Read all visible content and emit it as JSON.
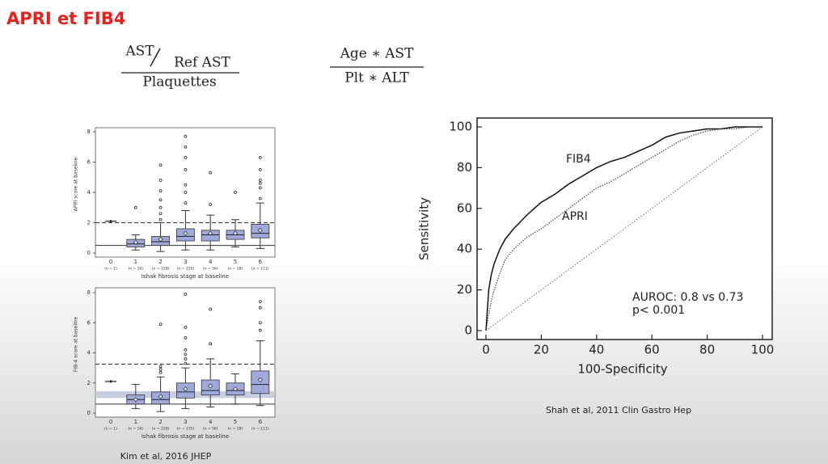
{
  "title": "APRI et FIB4",
  "formulas": [
    {
      "numerator": "AST",
      "divisor": "Ref AST",
      "denominator": "Plaquettes"
    },
    {
      "numerator": "Age ∗ AST",
      "denominator": "Plt ∗ ALT"
    }
  ],
  "chart_data": [
    {
      "type": "box",
      "y_label": "APRI score at baseline",
      "x_label": "Ishak fibrosis stage at baseline",
      "categories": [
        "0",
        "1",
        "2",
        "3",
        "4",
        "5",
        "6"
      ],
      "n_labels": [
        "(n = 1)",
        "(n = 16)",
        "(n = 228)",
        "(n = 135)",
        "(n = 56)",
        "(n = 28)",
        "(n = 111)"
      ],
      "ylim": [
        0,
        8
      ],
      "yticks": [
        0,
        2,
        4,
        6,
        8
      ],
      "color": "#9fa9dc",
      "reference_lines": [
        {
          "value": 2,
          "style": "dashed"
        },
        {
          "value": 0.5,
          "style": "solid"
        }
      ],
      "boxes": [
        {
          "mean": 2.1
        },
        {
          "low": 0.2,
          "q1": 0.4,
          "median": 0.6,
          "q3": 0.9,
          "high": 1.2,
          "mean": 0.7,
          "outliers": [
            3.0
          ]
        },
        {
          "low": 0.1,
          "q1": 0.5,
          "median": 0.75,
          "q3": 1.1,
          "high": 2.0,
          "mean": 0.9,
          "outliers": [
            2.2,
            2.6,
            3.0,
            3.5,
            4.1,
            4.8,
            5.8
          ]
        },
        {
          "low": 0.2,
          "q1": 0.8,
          "median": 1.1,
          "q3": 1.6,
          "high": 2.8,
          "mean": 1.3,
          "outliers": [
            3.3,
            4.0,
            4.5,
            5.5,
            6.3,
            7.0,
            7.7
          ]
        },
        {
          "low": 0.2,
          "q1": 0.8,
          "median": 1.2,
          "q3": 1.5,
          "high": 2.5,
          "mean": 1.3,
          "outliers": [
            3.2,
            5.3
          ]
        },
        {
          "low": 0.4,
          "q1": 0.9,
          "median": 1.2,
          "q3": 1.5,
          "high": 2.2,
          "mean": 1.3,
          "outliers": [
            4.0
          ]
        },
        {
          "low": 0.3,
          "q1": 1.0,
          "median": 1.3,
          "q3": 1.9,
          "high": 3.3,
          "mean": 1.5,
          "outliers": [
            3.6,
            4.3,
            4.6,
            4.8,
            5.5,
            6.3
          ]
        }
      ]
    },
    {
      "type": "box",
      "y_label": "FIB-4 score at baseline",
      "x_label": "Ishak fibrosis stage at baseline",
      "categories": [
        "0",
        "1",
        "2",
        "3",
        "4",
        "5",
        "6"
      ],
      "n_labels": [
        "(n = 1)",
        "(n = 16)",
        "(n = 228)",
        "(n = 135)",
        "(n = 56)",
        "(n = 28)",
        "(n = 111)"
      ],
      "ylim": [
        0,
        8
      ],
      "yticks": [
        0,
        2,
        4,
        6,
        8
      ],
      "color": "#9fa9dc",
      "reference_lines": [
        {
          "value": 3.25,
          "style": "dashed"
        },
        {
          "value": 0.6,
          "style": "solid"
        }
      ],
      "shaded_band": [
        1.0,
        1.45
      ],
      "boxes": [
        {
          "mean": 2.1
        },
        {
          "low": 0.3,
          "q1": 0.6,
          "median": 0.9,
          "q3": 1.2,
          "high": 1.9,
          "mean": 0.9
        },
        {
          "low": 0.1,
          "q1": 0.6,
          "median": 0.9,
          "q3": 1.4,
          "high": 2.4,
          "mean": 1.1,
          "outliers": [
            2.7,
            2.9,
            3.1,
            5.9
          ]
        },
        {
          "low": 0.3,
          "q1": 1.0,
          "median": 1.4,
          "q3": 2.0,
          "high": 3.0,
          "mean": 1.6,
          "outliers": [
            3.3,
            3.6,
            3.9,
            4.2,
            5.0,
            5.7,
            7.9
          ]
        },
        {
          "low": 0.4,
          "q1": 1.2,
          "median": 1.5,
          "q3": 2.2,
          "high": 3.6,
          "mean": 1.8,
          "outliers": [
            4.6,
            6.9
          ]
        },
        {
          "low": 0.6,
          "q1": 1.2,
          "median": 1.5,
          "q3": 2.0,
          "high": 2.6,
          "mean": 1.6
        },
        {
          "low": 0.5,
          "q1": 1.3,
          "median": 1.9,
          "q3": 2.8,
          "high": 4.8,
          "mean": 2.2,
          "outliers": [
            5.5,
            6.0,
            7.0,
            7.4
          ]
        }
      ]
    },
    {
      "type": "line",
      "x_label": "100-Specificity",
      "y_label": "Sensitivity",
      "xlim": [
        0,
        100
      ],
      "ylim": [
        0,
        100
      ],
      "xticks": [
        0,
        20,
        40,
        60,
        80,
        100
      ],
      "yticks": [
        0,
        20,
        40,
        60,
        80,
        100
      ],
      "x": [
        0,
        1,
        2,
        3,
        5,
        7,
        10,
        15,
        20,
        25,
        30,
        35,
        40,
        45,
        50,
        55,
        60,
        65,
        70,
        75,
        80,
        85,
        90,
        95,
        100
      ],
      "series": [
        {
          "name": "FIB4",
          "color": "#111111",
          "style": "solid",
          "values": [
            0,
            20,
            28,
            33,
            40,
            45,
            50,
            57,
            63,
            67,
            72,
            76,
            80,
            83,
            85,
            88,
            91,
            95,
            97,
            98,
            99,
            99,
            100,
            100,
            100
          ]
        },
        {
          "name": "APRI",
          "color": "#444444",
          "style": "dotted",
          "values": [
            0,
            8,
            15,
            20,
            28,
            35,
            40,
            46,
            50,
            55,
            60,
            65,
            70,
            73,
            77,
            81,
            85,
            89,
            93,
            96,
            98,
            99,
            99,
            100,
            100
          ]
        }
      ],
      "annotations": [
        "AUROC: 0.8 vs 0.73",
        "p< 0.001"
      ]
    }
  ],
  "citations": [
    "Kim et al, 2016 JHEP",
    "Shah et al, 2011 Clin Gastro Hep"
  ]
}
